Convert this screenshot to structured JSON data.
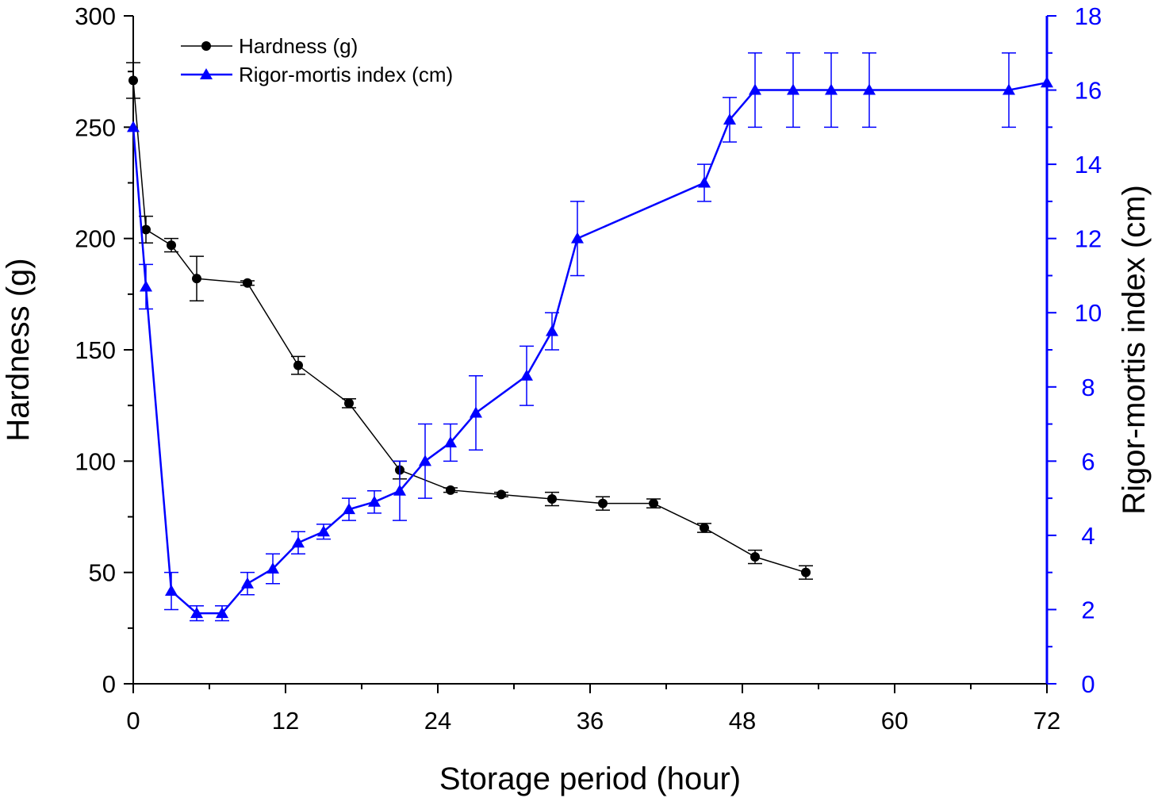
{
  "chart_data": {
    "type": "line",
    "xlabel": "Storage period (hour)",
    "ylabel": "Hardness (g)",
    "y2label": "Rigor-mortis index (cm)",
    "xlim": [
      0,
      72
    ],
    "ylim": [
      0,
      300
    ],
    "y2lim": [
      0,
      18
    ],
    "x_ticks": [
      0,
      12,
      24,
      36,
      48,
      60,
      72
    ],
    "y_ticks": [
      0,
      50,
      100,
      150,
      200,
      250,
      300
    ],
    "y2_ticks": [
      0,
      2,
      4,
      6,
      8,
      10,
      12,
      14,
      16,
      18
    ],
    "legend_position": "top-left",
    "grid": false,
    "series": [
      {
        "name": "Hardness (g)",
        "axis": "left",
        "color": "#000000",
        "marker": "circle",
        "x": [
          0,
          1,
          3,
          5,
          9,
          13,
          17,
          21,
          25,
          29,
          33,
          37,
          41,
          45,
          49,
          53
        ],
        "values": [
          271,
          204,
          197,
          182,
          180,
          143,
          126,
          96,
          87,
          85,
          83,
          81,
          81,
          70,
          57,
          50
        ],
        "errors": [
          8,
          6,
          3,
          10,
          1,
          4,
          2,
          4,
          1,
          1,
          3,
          3,
          2,
          2,
          3,
          3
        ]
      },
      {
        "name": "Rigor-mortis index (cm)",
        "axis": "right",
        "color": "#0000ff",
        "marker": "triangle",
        "x": [
          0,
          1,
          3,
          5,
          7,
          9,
          11,
          13,
          15,
          17,
          19,
          21,
          23,
          25,
          27,
          31,
          33,
          35,
          45,
          47,
          49,
          52,
          55,
          58,
          69,
          72
        ],
        "values": [
          15,
          10.7,
          2.5,
          1.9,
          1.9,
          2.7,
          3.1,
          3.8,
          4.1,
          4.7,
          4.9,
          5.2,
          6.0,
          6.5,
          7.3,
          8.3,
          9.5,
          12.0,
          13.5,
          15.2,
          16.0,
          16.0,
          16.0,
          16.0,
          16.0,
          16.2
        ],
        "errors": [
          0,
          0.6,
          0.5,
          0.2,
          0.2,
          0.3,
          0.4,
          0.3,
          0.2,
          0.3,
          0.3,
          0.8,
          1.0,
          0.5,
          1.0,
          0.8,
          0.5,
          1.0,
          0.5,
          0.6,
          1.0,
          1.0,
          1.0,
          1.0,
          1.0,
          0
        ]
      }
    ]
  }
}
